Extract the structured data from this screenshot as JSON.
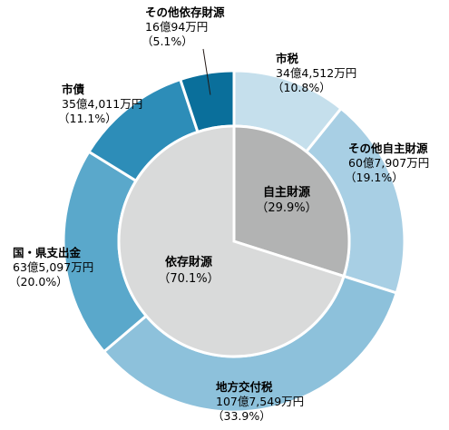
{
  "chart_data": {
    "type": "pie",
    "title": "",
    "inner": {
      "slices": [
        {
          "name": "自主財源",
          "pct_label": "（29.9%）",
          "value": 29.9,
          "color": "#b2b3b3"
        },
        {
          "name": "依存財源",
          "pct_label": "（70.1%）",
          "value": 70.1,
          "color": "#d9dada"
        }
      ]
    },
    "outer": {
      "slices": [
        {
          "name": "市税",
          "amount": "34億4,512万円",
          "pct_label": "（10.8%）",
          "value": 10.8,
          "color": "#c5dfec"
        },
        {
          "name": "その他自主財源",
          "amount": "60億7,907万円",
          "pct_label": "（19.1%）",
          "value": 19.1,
          "color": "#a8cfe4"
        },
        {
          "name": "地方交付税",
          "amount": "107億7,549万円",
          "pct_label": "（33.9%）",
          "value": 33.9,
          "color": "#8dc1db"
        },
        {
          "name": "国・県支出金",
          "amount": "63億5,097万円",
          "pct_label": "（20.0%）",
          "value": 20.0,
          "color": "#5aa8cb"
        },
        {
          "name": "市債",
          "amount": "35億4,011万円",
          "pct_label": "（11.1%）",
          "value": 11.1,
          "color": "#2d8db8"
        },
        {
          "name": "その他依存財源",
          "amount": "16億94万円",
          "pct_label": "（5.1%）",
          "value": 5.1,
          "color": "#0a6f9b"
        }
      ]
    }
  }
}
